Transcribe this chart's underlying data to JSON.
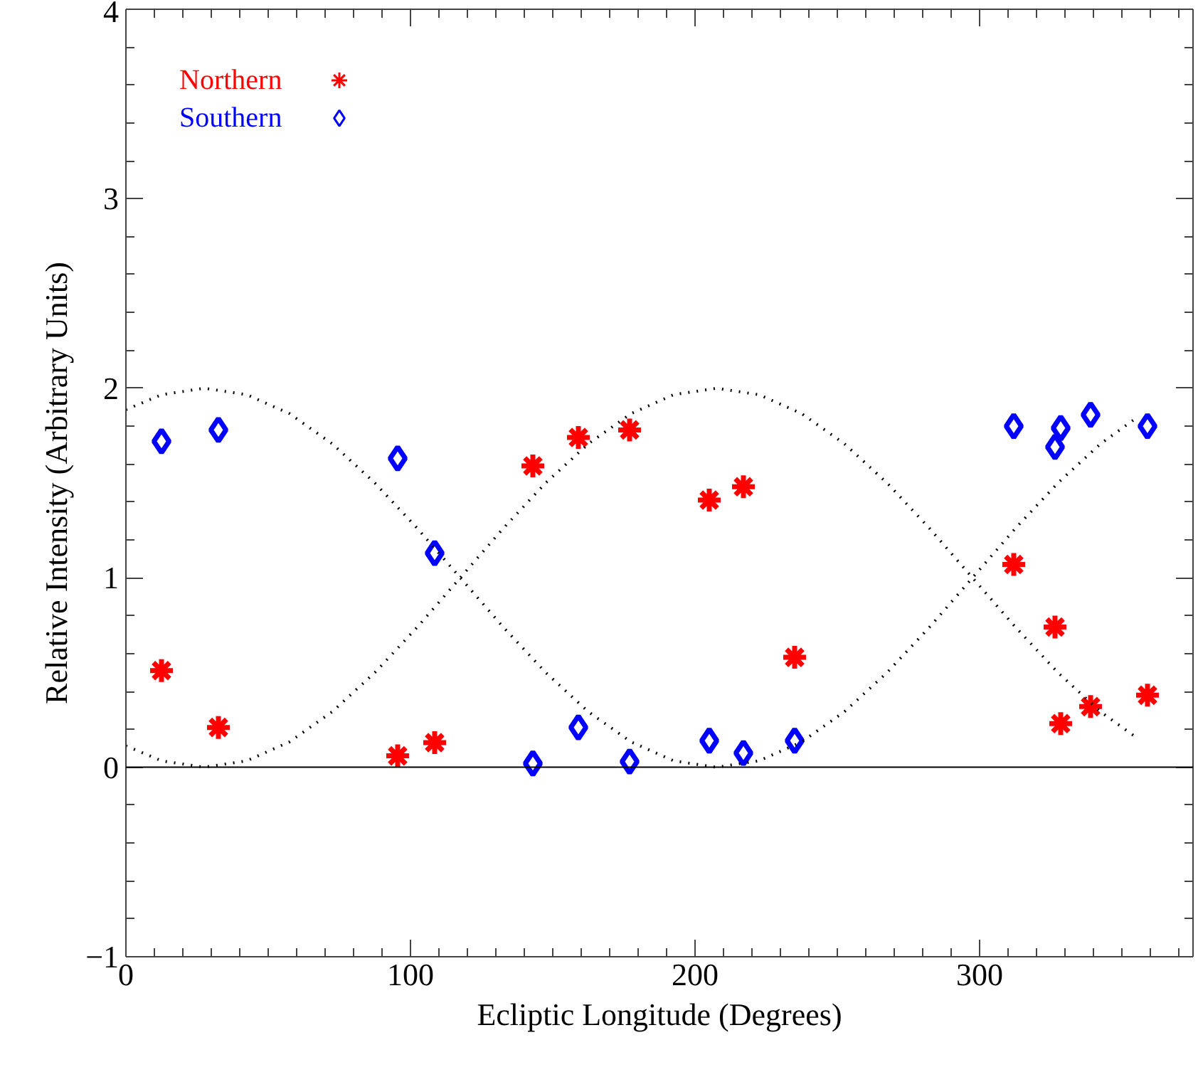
{
  "chart_data": {
    "type": "scatter",
    "xlabel": "Ecliptic Longitude (Degrees)",
    "ylabel": "Relative Intensity (Arbitrary Units)",
    "xlim": [
      0,
      375
    ],
    "xticks": [
      0,
      100,
      200,
      300
    ],
    "ylim": [
      -1,
      4
    ],
    "yticks": [
      -1,
      0,
      1,
      2,
      3,
      4
    ],
    "legend": "top left",
    "grid": false,
    "series": [
      {
        "name": "Northern",
        "color": "#ff0000",
        "marker": "cross",
        "x": [
          12.5,
          32.5,
          95.5,
          108.5,
          143,
          159,
          177,
          205,
          217,
          235,
          312,
          326.5,
          328.5,
          339,
          359
        ],
        "values": [
          0.51,
          0.21,
          0.06,
          0.13,
          1.59,
          1.74,
          1.78,
          1.41,
          1.48,
          0.58,
          1.07,
          0.74,
          0.23,
          0.32,
          0.38
        ]
      },
      {
        "name": "Southern",
        "color": "#0000ff",
        "marker": "diamond",
        "x": [
          12.5,
          32.5,
          95.5,
          108.5,
          143,
          159,
          177,
          205,
          217,
          235,
          312,
          326.5,
          328.5,
          339,
          359
        ],
        "values": [
          1.72,
          1.78,
          1.63,
          1.13,
          0.02,
          0.21,
          0.03,
          0.14,
          0.075,
          0.14,
          1.8,
          1.69,
          1.79,
          1.86,
          1.8
        ]
      },
      {
        "type": "line",
        "color": "#000000",
        "line_style": "dotted",
        "x": [
          0,
          12.5,
          27.5,
          42.5,
          57.5,
          72.5,
          87.5,
          102.5,
          117.5,
          132.5,
          147.5,
          162.5,
          177.5,
          192.5,
          207.5,
          222.5,
          237.5,
          252.5,
          267.5,
          282.5,
          297.5,
          312.5,
          327.5,
          342.5,
          356
        ],
        "values": [
          0.113,
          0.034,
          0,
          0.034,
          0.134,
          0.293,
          0.5,
          0.741,
          1,
          1.259,
          1.5,
          1.707,
          1.866,
          1.966,
          2,
          1.966,
          1.866,
          1.707,
          1.5,
          1.259,
          1,
          0.741,
          0.5,
          0.293,
          0.147
        ]
      },
      {
        "type": "line",
        "color": "#000000",
        "line_style": "dotted",
        "x": [
          0,
          12.5,
          27.5,
          42.5,
          57.5,
          72.5,
          87.5,
          102.5,
          117.5,
          132.5,
          147.5,
          162.5,
          177.5,
          192.5,
          207.5,
          222.5,
          237.5,
          252.5,
          267.5,
          282.5,
          297.5,
          312.5,
          327.5,
          342.5,
          356
        ],
        "values": [
          1.887,
          1.966,
          2,
          1.966,
          1.866,
          1.707,
          1.5,
          1.259,
          1,
          0.741,
          0.5,
          0.293,
          0.134,
          0.034,
          0,
          0.034,
          0.134,
          0.293,
          0.5,
          0.741,
          1,
          1.259,
          1.5,
          1.707,
          1.853
        ]
      }
    ],
    "ref_lines": [
      {
        "axis": "y",
        "value": 0,
        "color": "#000000",
        "line_style": "solid"
      }
    ]
  }
}
